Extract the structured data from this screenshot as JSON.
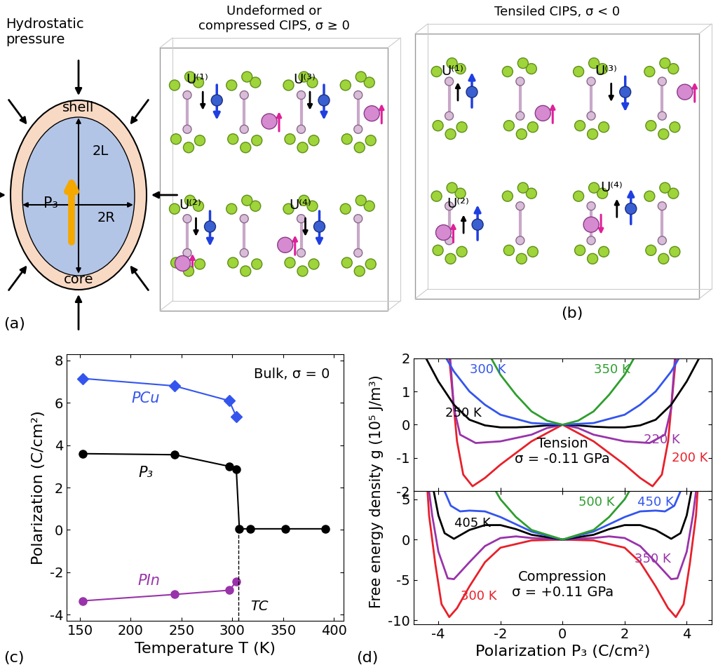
{
  "panel_labels": [
    "(a)",
    "(b)",
    "(c)",
    "(d)"
  ],
  "diagram_a": {
    "pressure_label": "Hydrostatic\npressure",
    "shell": "shell",
    "core": "core",
    "length": "2L",
    "radius": "2R",
    "polarization": "P₃"
  },
  "diagram_b": {
    "structures": [
      {
        "title": "Undeformed or\ncompressed CIPS, σ ≥ 0",
        "sites": [
          "U⁽¹⁾",
          "U⁽³⁾",
          "U⁽²⁾",
          "U⁽⁴⁾"
        ]
      },
      {
        "title": "Tensiled CIPS, σ < 0",
        "sites": [
          "U⁽¹⁾",
          "U⁽³⁾",
          "U⁽²⁾",
          "U⁽⁴⁾"
        ]
      }
    ]
  },
  "chart_data": [
    {
      "type": "line",
      "xlabel": "Temperature T (K)",
      "ylabel": "Polarization (C/cm²)",
      "xlim": [
        137,
        410
      ],
      "xticks": [
        150,
        200,
        250,
        300,
        350,
        400
      ],
      "ylim": [
        -4.3,
        8.3
      ],
      "yticks": [
        -4,
        -2,
        0,
        2,
        4,
        6,
        8
      ],
      "annotations": [
        "Bulk, σ = 0"
      ],
      "critical_temperature": {
        "label": "TC",
        "value": 306
      },
      "series": [
        {
          "name": "PCu",
          "color": "#3355ee",
          "marker": "diamond",
          "line_style": "solid",
          "x": [
            153,
            243,
            297,
            304
          ],
          "values": [
            7.15,
            6.8,
            6.1,
            5.35
          ]
        },
        {
          "name": "P₃",
          "color": "#000000",
          "marker": "circle",
          "line_style": "solid",
          "x": [
            153,
            243,
            297,
            304,
            307,
            318,
            352,
            392
          ],
          "values": [
            3.6,
            3.55,
            3.0,
            2.85,
            0.05,
            0.05,
            0.05,
            0.05
          ]
        },
        {
          "name": "PIn",
          "color": "#9933aa",
          "marker": "circle",
          "line_style": "solid",
          "x": [
            153,
            243,
            297,
            304
          ],
          "values": [
            -3.35,
            -3.05,
            -2.85,
            -2.45
          ]
        }
      ]
    },
    {
      "type": "line",
      "tick_labels": "y",
      "annotations": [
        "Tension\nσ = -0.11 GPa"
      ],
      "xlim": [
        -4.8,
        4.8
      ],
      "xticks": [
        -4,
        -2,
        0,
        2,
        4
      ],
      "ylim": [
        -2,
        2
      ],
      "yticks": [
        -2,
        -1,
        0,
        1,
        2
      ],
      "series": [
        {
          "name": "200 K",
          "color": "#e8202a",
          "x": [
            -3.65,
            -3.5,
            -3.4,
            -3.2,
            -2.9,
            -2.5,
            -2,
            -1,
            0,
            1,
            2,
            2.5,
            2.9,
            3.2,
            3.4,
            3.5,
            3.65
          ],
          "values": [
            2.0,
            0.5,
            -0.5,
            -1.5,
            -1.85,
            -1.6,
            -1.2,
            -0.5,
            0,
            -0.5,
            -1.2,
            -1.6,
            -1.85,
            -1.5,
            -0.5,
            0.5,
            2.0
          ]
        },
        {
          "name": "220 K",
          "color": "#9933aa",
          "x": [
            -3.62,
            -3.5,
            -3.3,
            -2.8,
            -2,
            -1,
            -0.5,
            0,
            0.5,
            1,
            2,
            2.8,
            3.3,
            3.5,
            3.62
          ],
          "values": [
            2.0,
            0.5,
            -0.3,
            -0.55,
            -0.5,
            -0.3,
            -0.1,
            0,
            -0.1,
            -0.3,
            -0.5,
            -0.55,
            -0.3,
            0.5,
            2.0
          ]
        },
        {
          "name": "250 K",
          "color": "#000000",
          "x": [
            -4.4,
            -4,
            -3.5,
            -3,
            -2.5,
            -2,
            -1.5,
            -1,
            -0.5,
            0,
            0.5,
            1,
            1.5,
            2,
            2.5,
            3,
            3.5,
            4,
            4.4
          ],
          "values": [
            2,
            1.3,
            0.6,
            0.15,
            -0.02,
            -0.08,
            -0.08,
            -0.06,
            -0.02,
            0,
            -0.02,
            -0.06,
            -0.08,
            -0.08,
            -0.02,
            0.15,
            0.6,
            1.3,
            2
          ]
        },
        {
          "name": "300 K",
          "color": "#3355ee",
          "x": [
            -3.75,
            -3.5,
            -3,
            -2.5,
            -2,
            -1,
            0,
            1,
            2,
            2.5,
            3,
            3.5,
            3.75
          ],
          "values": [
            2,
            1.6,
            1.0,
            0.6,
            0.3,
            0.05,
            0,
            0.05,
            0.3,
            0.6,
            1.0,
            1.6,
            2
          ]
        },
        {
          "name": "350 K",
          "color": "#2e9e2e",
          "x": [
            -2.3,
            -2,
            -1.5,
            -1,
            -0.5,
            0,
            0.5,
            1,
            1.5,
            2,
            2.3
          ],
          "values": [
            2,
            1.5,
            0.9,
            0.4,
            0.12,
            0,
            0.12,
            0.4,
            0.9,
            1.5,
            2
          ]
        }
      ]
    },
    {
      "type": "line",
      "xlabel": "Polarization P₃ (C/cm²)",
      "ylabel": "Free energy density g (10⁵ J/m³)",
      "annotations": [
        "Compression\nσ = +0.11 GPa"
      ],
      "xlim": [
        -4.8,
        4.8
      ],
      "xticks": [
        -4,
        -2,
        0,
        2,
        4
      ],
      "ylim": [
        -10.5,
        6
      ],
      "yticks": [
        -10,
        -5,
        0,
        5
      ],
      "series": [
        {
          "name": "300 K",
          "color": "#e8202a",
          "x": [
            -4.35,
            -4.3,
            -4.1,
            -3.9,
            -3.65,
            -3.4,
            -3,
            -2.5,
            -2,
            -1,
            0,
            1,
            2,
            2.5,
            3,
            3.4,
            3.65,
            3.9,
            4.1,
            4.3,
            4.35
          ],
          "values": [
            6,
            3,
            -3,
            -8,
            -9.6,
            -8.5,
            -5.8,
            -2.8,
            -1.0,
            -0.1,
            0,
            -0.1,
            -1.0,
            -2.8,
            -5.8,
            -8.5,
            -9.6,
            -8,
            -3,
            3,
            6
          ]
        },
        {
          "name": "350 K",
          "color": "#9933aa",
          "x": [
            -4.3,
            -4.2,
            -4,
            -3.7,
            -3.5,
            -3,
            -2.5,
            -2,
            -1.5,
            -1,
            0,
            1,
            1.5,
            2,
            2.5,
            3,
            3.5,
            3.7,
            4,
            4.2,
            4.3
          ],
          "values": [
            6,
            3,
            -1.5,
            -4.8,
            -4.9,
            -2.8,
            -0.8,
            0.2,
            0.4,
            0.2,
            0,
            0.2,
            0.4,
            0.2,
            -0.8,
            -2.8,
            -4.9,
            -4.8,
            -1.5,
            3,
            6
          ]
        },
        {
          "name": "405 K",
          "color": "#000000",
          "x": [
            -4.15,
            -4,
            -3.8,
            -3.5,
            -3,
            -2.5,
            -2,
            -1.5,
            -1,
            0,
            1,
            1.5,
            2,
            2.5,
            3,
            3.5,
            3.8,
            4,
            4.15
          ],
          "values": [
            6,
            3,
            0.8,
            0.1,
            1.2,
            1.8,
            1.8,
            1.3,
            0.6,
            0,
            0.6,
            1.3,
            1.8,
            1.8,
            1.2,
            0.1,
            0.8,
            3,
            6
          ]
        },
        {
          "name": "450 K",
          "color": "#3355ee",
          "x": [
            -3.8,
            -3.6,
            -3.3,
            -3,
            -2.5,
            -2,
            -1,
            0,
            1,
            2,
            2.5,
            3,
            3.3,
            3.6,
            3.8
          ],
          "values": [
            6,
            4.2,
            3.5,
            3.6,
            3.5,
            2.8,
            1.0,
            0,
            1.0,
            2.8,
            3.5,
            3.6,
            3.5,
            4.2,
            6
          ]
        },
        {
          "name": "500 K",
          "color": "#2e9e2e",
          "x": [
            -2.15,
            -2,
            -1.5,
            -1,
            0,
            1,
            1.5,
            2,
            2.15
          ],
          "values": [
            6,
            5,
            2.8,
            1.2,
            0,
            1.2,
            2.8,
            5,
            6
          ]
        }
      ]
    }
  ]
}
